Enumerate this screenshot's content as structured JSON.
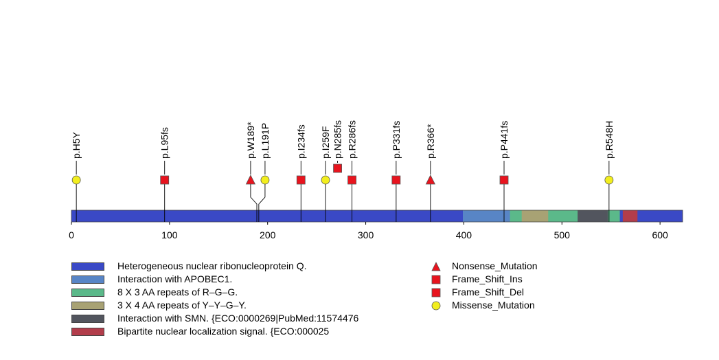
{
  "chart_data": {
    "type": "lollipop",
    "protein_length": 623,
    "xlim": [
      0,
      623
    ],
    "x_ticks": [
      0,
      100,
      200,
      300,
      400,
      500,
      600
    ],
    "domains": [
      {
        "name": "Heterogeneous nuclear ribonucleoprotein Q.",
        "start": 1,
        "end": 623,
        "color": "#3a49c6"
      },
      {
        "name": "Interaction with APOBEC1.",
        "start": 400,
        "end": 448,
        "color": "#5885c6"
      },
      {
        "name": "8 X 3 AA repeats of R-G-G.",
        "start": 448,
        "end": 460,
        "color": "#5bb98a"
      },
      {
        "name": "3 X 4 AA repeats of Y-Y-G-Y.",
        "start": 460,
        "end": 487,
        "color": "#a8a274"
      },
      {
        "name": "8 X 3 AA repeats of R-G-G.",
        "start": 487,
        "end": 517,
        "color": "#5bb98a"
      },
      {
        "name": "Interaction with SMN. {ECO:0000269|PubMed:11574476",
        "start": 517,
        "end": 548,
        "color": "#52555e"
      },
      {
        "name": "8 X 3 AA repeats of R-G-G.",
        "start": 548,
        "end": 559,
        "color": "#5bb98a"
      },
      {
        "name": "Bipartite nuclear localization signal. {ECO:000025",
        "start": 563,
        "end": 577,
        "color": "#b23d4b"
      }
    ],
    "mutations": [
      {
        "label": "p.H5Y",
        "pos": 5,
        "type": "Missense_Mutation",
        "stack": 0
      },
      {
        "label": "p.L95fs",
        "pos": 95,
        "type": "Frame_Shift_Del",
        "stack": 0
      },
      {
        "label": "p.W189*",
        "pos": 189,
        "type": "Nonsense_Mutation",
        "stack": 0
      },
      {
        "label": "p.L191P",
        "pos": 191,
        "type": "Missense_Mutation",
        "stack": 0
      },
      {
        "label": "p.I234fs",
        "pos": 234,
        "type": "Frame_Shift_Del",
        "stack": 0
      },
      {
        "label": "p.I259F",
        "pos": 259,
        "type": "Missense_Mutation",
        "stack": 0
      },
      {
        "label": "p.N285fs",
        "pos": 285,
        "type": "Frame_Shift_Del",
        "stack": 1
      },
      {
        "label": "p.R286fs",
        "pos": 286,
        "type": "Frame_Shift_Del",
        "stack": 0
      },
      {
        "label": "p.P331fs",
        "pos": 331,
        "type": "Frame_Shift_Del",
        "stack": 0
      },
      {
        "label": "p.R366*",
        "pos": 366,
        "type": "Nonsense_Mutation",
        "stack": 0
      },
      {
        "label": "p.P441fs",
        "pos": 441,
        "type": "Frame_Shift_Del",
        "stack": 0
      },
      {
        "label": "p.R548H",
        "pos": 548,
        "type": "Missense_Mutation",
        "stack": 0
      }
    ],
    "mutation_legend": [
      {
        "label": "Nonsense_Mutation",
        "shape": "triangle",
        "color": "#e8141e"
      },
      {
        "label": "Frame_Shift_Ins",
        "shape": "square",
        "color": "#e8141e"
      },
      {
        "label": "Frame_Shift_Del",
        "shape": "square",
        "color": "#e8141e"
      },
      {
        "label": "Missense_Mutation",
        "shape": "circle",
        "color": "#f2ee1e"
      }
    ]
  },
  "domain_legend": [
    {
      "label": "Heterogeneous nuclear ribonucleoprotein Q.",
      "color": "#3a49c6"
    },
    {
      "label": "Interaction with APOBEC1.",
      "color": "#5885c6"
    },
    {
      "label": "8 X 3 AA repeats of R–G–G.",
      "color": "#5bb98a"
    },
    {
      "label": "3 X 4 AA repeats of Y–Y–G–Y.",
      "color": "#a8a274"
    },
    {
      "label": "Interaction with SMN. {ECO:0000269|PubMed:11574476",
      "color": "#52555e"
    },
    {
      "label": "Bipartite nuclear localization signal. {ECO:000025",
      "color": "#b23d4b"
    }
  ]
}
